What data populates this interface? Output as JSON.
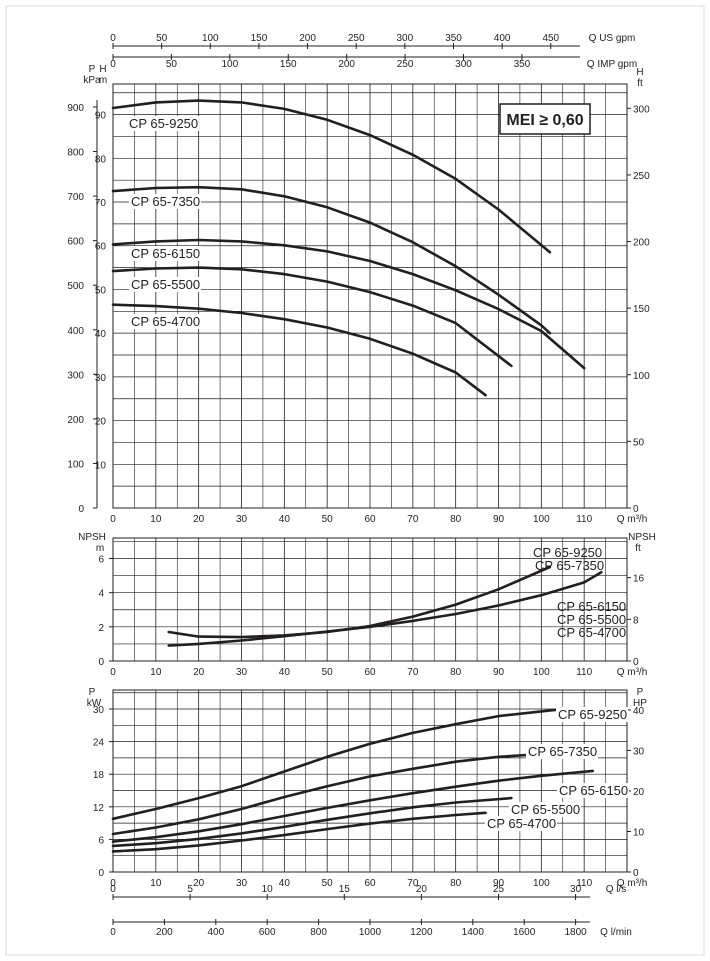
{
  "chart_data": [
    {
      "type": "line",
      "panel": "head",
      "x_axis": {
        "label": "Q m³/h",
        "ticks": [
          0,
          10,
          20,
          30,
          40,
          50,
          60,
          70,
          80,
          90,
          100,
          110
        ],
        "range": [
          0,
          120
        ]
      },
      "top_axes": [
        {
          "label": "Q US gpm",
          "ticks": [
            0,
            50,
            100,
            150,
            200,
            250,
            300,
            350,
            400,
            450
          ]
        },
        {
          "label": "Q IMP gpm",
          "ticks": [
            0,
            50,
            100,
            150,
            200,
            250,
            300,
            350
          ]
        }
      ],
      "left_axes": [
        {
          "label_lines": [
            "P",
            "kPa"
          ],
          "ticks": [
            0,
            100,
            200,
            300,
            400,
            500,
            600,
            700,
            800,
            900
          ]
        },
        {
          "label_lines": [
            "H",
            "m"
          ],
          "ticks": [
            10,
            20,
            30,
            40,
            50,
            60,
            70,
            80,
            90
          ]
        }
      ],
      "right_axis": {
        "label_lines": [
          "H",
          "ft"
        ],
        "ticks": [
          0,
          50,
          100,
          150,
          200,
          250,
          300
        ]
      },
      "y_range": [
        0,
        97
      ],
      "grid": true,
      "badge": "MEI ≥ 0,60",
      "series": [
        {
          "name": "CP 65-9250",
          "x": [
            0,
            10,
            20,
            30,
            40,
            50,
            60,
            70,
            80,
            90,
            102
          ],
          "y": [
            91.5,
            92.8,
            93.2,
            92.8,
            91.3,
            88.8,
            85.3,
            80.8,
            75.3,
            68.3,
            58.5
          ]
        },
        {
          "name": "CP 65-7350",
          "x": [
            0,
            10,
            20,
            30,
            40,
            50,
            60,
            70,
            80,
            90,
            100,
            102
          ],
          "y": [
            72.5,
            73.2,
            73.4,
            72.9,
            71.3,
            68.8,
            65.3,
            60.8,
            55.3,
            48.8,
            41.8,
            40
          ]
        },
        {
          "name": "CP 65-6150",
          "x": [
            0,
            10,
            20,
            30,
            40,
            50,
            60,
            70,
            80,
            90,
            100,
            110
          ],
          "y": [
            60.3,
            61,
            61.3,
            61,
            60.1,
            58.7,
            56.5,
            53.5,
            49.8,
            45.5,
            40.5,
            32
          ]
        },
        {
          "name": "CP 65-5500",
          "x": [
            0,
            10,
            20,
            30,
            40,
            50,
            60,
            70,
            80,
            93
          ],
          "y": [
            54.2,
            54.8,
            55,
            54.6,
            53.5,
            51.8,
            49.4,
            46.3,
            42.3,
            32.5
          ]
        },
        {
          "name": "CP 65-4700",
          "x": [
            0,
            10,
            20,
            30,
            40,
            50,
            60,
            70,
            80,
            87
          ],
          "y": [
            46.5,
            46.2,
            45.6,
            44.6,
            43.2,
            41.3,
            38.7,
            35.3,
            31,
            25.8
          ]
        }
      ]
    },
    {
      "type": "line",
      "panel": "npsh",
      "x_axis": {
        "label": "Q m³/h",
        "ticks": [
          0,
          10,
          20,
          30,
          40,
          50,
          60,
          70,
          80,
          90,
          100,
          110
        ],
        "range": [
          0,
          120
        ]
      },
      "left_axis": {
        "label_lines": [
          "NPSH",
          "m"
        ],
        "ticks": [
          0,
          2,
          4,
          6
        ]
      },
      "right_axis": {
        "label_lines": [
          "NPSH",
          "ft"
        ],
        "ticks": [
          0,
          8,
          16
        ]
      },
      "y_range": [
        0,
        7.2
      ],
      "grid": true,
      "series": [
        {
          "name": "CP 65-9250 / CP 65-7350",
          "x": [
            13,
            20,
            30,
            40,
            50,
            60,
            70,
            80,
            90,
            102
          ],
          "y": [
            1.7,
            1.43,
            1.4,
            1.5,
            1.7,
            2.05,
            2.6,
            3.3,
            4.2,
            5.5
          ]
        },
        {
          "name": "CP 65-6150 / CP 65-5500 / CP 65-4700",
          "x": [
            13,
            20,
            30,
            40,
            50,
            60,
            70,
            80,
            90,
            100,
            110,
            114
          ],
          "y": [
            0.9,
            1.0,
            1.2,
            1.45,
            1.72,
            2.0,
            2.35,
            2.75,
            3.25,
            3.85,
            4.6,
            5.2
          ]
        }
      ]
    },
    {
      "type": "line",
      "panel": "power",
      "x_axis": {
        "label": "Q m³/h",
        "ticks": [
          0,
          10,
          20,
          30,
          40,
          50,
          60,
          70,
          80,
          90,
          100,
          110
        ],
        "range": [
          0,
          120
        ]
      },
      "left_axis": {
        "label_lines": [
          "P",
          "kW"
        ],
        "ticks": [
          0,
          6,
          12,
          18,
          24,
          30
        ]
      },
      "right_axis": {
        "label_lines": [
          "P",
          "HP"
        ],
        "ticks": [
          0,
          10,
          20,
          30,
          40
        ]
      },
      "y_range": [
        0,
        33.5
      ],
      "grid": true,
      "bottom_axes": [
        {
          "label": "Q l/s",
          "ticks": [
            0,
            5,
            10,
            15,
            20,
            25,
            30
          ]
        },
        {
          "label": "Q l/min",
          "ticks": [
            0,
            200,
            400,
            600,
            800,
            1000,
            1200,
            1400,
            1600,
            1800
          ]
        }
      ],
      "series": [
        {
          "name": "CP 65-9250",
          "x": [
            0,
            10,
            20,
            30,
            40,
            50,
            60,
            70,
            80,
            90,
            104
          ],
          "y": [
            9.8,
            11.6,
            13.6,
            15.8,
            18.5,
            21.2,
            23.6,
            25.6,
            27.2,
            28.7,
            29.9
          ]
        },
        {
          "name": "CP 65-7350",
          "x": [
            0,
            10,
            20,
            30,
            40,
            50,
            60,
            70,
            80,
            90,
            102
          ],
          "y": [
            7,
            8.2,
            9.7,
            11.6,
            13.8,
            15.8,
            17.6,
            19,
            20.3,
            21.2,
            21.8
          ]
        },
        {
          "name": "CP 65-6150",
          "x": [
            0,
            10,
            20,
            30,
            40,
            50,
            60,
            70,
            80,
            90,
            100,
            112
          ],
          "y": [
            5.6,
            6.4,
            7.5,
            8.8,
            10.3,
            11.8,
            13.2,
            14.5,
            15.7,
            16.8,
            17.7,
            18.6
          ]
        },
        {
          "name": "CP 65-5500",
          "x": [
            0,
            10,
            20,
            30,
            40,
            50,
            60,
            70,
            80,
            93
          ],
          "y": [
            4.8,
            5.3,
            6.1,
            7.1,
            8.3,
            9.6,
            10.8,
            11.9,
            12.8,
            13.6
          ]
        },
        {
          "name": "CP 65-4700",
          "x": [
            0,
            10,
            20,
            30,
            40,
            50,
            60,
            70,
            80,
            87
          ],
          "y": [
            3.8,
            4.2,
            4.9,
            5.8,
            6.8,
            7.9,
            8.9,
            9.8,
            10.5,
            10.9
          ]
        }
      ],
      "labels": [
        "CP 65-9250",
        "CP 65-7350",
        "CP 65-6150",
        "CP 65-5500",
        "CP 65-4700"
      ]
    }
  ],
  "npsh_labels": [
    "CP 65-9250",
    "CP 65-7350",
    "CP 65-6150",
    "CP 65-5500",
    "CP 65-4700"
  ],
  "colors": {
    "curve": "#231f20",
    "grid": "#231f20",
    "background": "#ffffff"
  }
}
